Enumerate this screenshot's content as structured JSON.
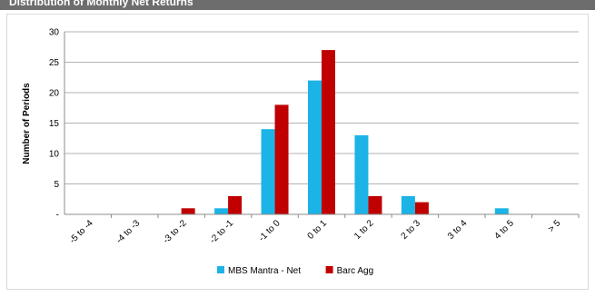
{
  "header": {
    "title": "Distribution of Monthly Net Returns"
  },
  "chart_data": {
    "type": "bar",
    "title": "",
    "xlabel": "",
    "ylabel": "Number of Periods",
    "ylim": [
      0,
      30
    ],
    "yticks": [
      0,
      5,
      10,
      15,
      20,
      25,
      30
    ],
    "ytick_labels": [
      "-",
      "5",
      "10",
      "15",
      "20",
      "25",
      "30"
    ],
    "grid": "horizontal",
    "legend": "bottom-center",
    "categories": [
      "-5 to -4",
      "-4 to -3",
      "-3 to -2",
      "-2 to -1",
      "-1 to 0",
      "0 to 1",
      "1 to 2",
      "2 to 3",
      "3 to 4",
      "4 to 5",
      "> 5"
    ],
    "series": [
      {
        "name": "MBS Mantra - Net",
        "color": "#1cb4e6",
        "values": [
          0,
          0,
          0,
          1,
          14,
          22,
          13,
          3,
          0,
          1,
          0
        ]
      },
      {
        "name": "Barc Agg",
        "color": "#c00000",
        "values": [
          0,
          0,
          1,
          3,
          18,
          27,
          3,
          2,
          0,
          0,
          0
        ]
      }
    ]
  }
}
